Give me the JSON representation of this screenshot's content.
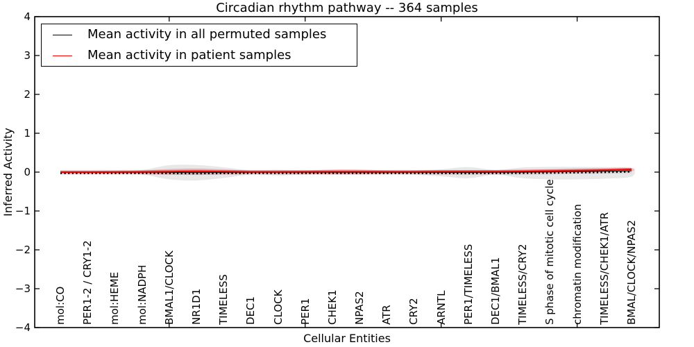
{
  "title": "Circadian rhythm pathway -- 364 samples",
  "axes": {
    "xlabel": "Cellular Entities",
    "ylabel": "Inferred Activity",
    "ytick_labels": [
      "4",
      "3",
      "2",
      "1",
      "0",
      "−1",
      "−2",
      "−3",
      "−4"
    ]
  },
  "legend": {
    "items": [
      {
        "label": "Mean activity in all permuted samples",
        "color": "#000000"
      },
      {
        "label": "Mean activity in patient samples",
        "color": "#ff0000"
      }
    ]
  },
  "colors": {
    "permuted_line": "#000000",
    "patient_line": "#e60000",
    "permuted_band": "rgba(0,0,0,0.09)",
    "permuted_band_core": "rgba(0,0,0,0.08)",
    "patient_band": "rgba(255,0,0,0.20)",
    "patient_band_core": "rgba(255,0,0,0.25)",
    "frame": "#000000"
  },
  "chart_data": {
    "type": "line",
    "title": "Circadian rhythm pathway -- 364 samples",
    "xlabel": "Cellular Entities",
    "ylabel": "Inferred Activity",
    "ylim": [
      -4,
      4
    ],
    "yticks": [
      4,
      3,
      2,
      1,
      0,
      -1,
      -2,
      -3,
      -4
    ],
    "grid": false,
    "legend_position": "upper left",
    "categories": [
      "mol:CO",
      "PER1-2 / CRY1-2",
      "mol:HEME",
      "mol:NADPH",
      "BMAL1/CLOCK",
      "NR1D1",
      "TIMELESS",
      "DEC1",
      "CLOCK",
      "PER1",
      "CHEK1",
      "NPAS2",
      "ATR",
      "CRY2",
      "ARNTL",
      "PER1/TIMELESS",
      "DEC1/BMAL1",
      "TIMELESS/CRY2",
      "S phase of mitotic cell cycle",
      "chromatin modification",
      "TIMELESS/CHEK1/ATR",
      "BMAL/CLOCK/NPAS2"
    ],
    "series": [
      {
        "name": "Mean activity in all permuted samples",
        "color": "#000000",
        "values": [
          -0.005,
          -0.005,
          -0.005,
          -0.005,
          -0.008,
          -0.01,
          -0.008,
          -0.005,
          -0.005,
          -0.005,
          -0.005,
          -0.005,
          -0.005,
          -0.005,
          -0.007,
          -0.009,
          -0.005,
          -0.002,
          0.004,
          0.012,
          0.022,
          0.034
        ]
      },
      {
        "name": "Mean activity in patient samples",
        "color": "#e60000",
        "values": [
          0.0,
          0.0,
          0.002,
          0.005,
          0.013,
          0.021,
          0.014,
          0.007,
          0.007,
          0.009,
          0.011,
          0.011,
          0.009,
          0.009,
          0.012,
          0.013,
          0.013,
          0.02,
          0.028,
          0.039,
          0.052,
          0.071
        ]
      }
    ],
    "bands": [
      {
        "name": "permuted-range",
        "upper": [
          0.036,
          0.036,
          0.04,
          0.055,
          0.178,
          0.182,
          0.125,
          0.045,
          0.057,
          0.036,
          0.036,
          0.036,
          0.036,
          0.045,
          0.071,
          0.128,
          0.053,
          0.119,
          0.134,
          0.134,
          0.128,
          0.098
        ],
        "lower": [
          -0.045,
          -0.045,
          -0.05,
          -0.06,
          -0.187,
          -0.214,
          -0.152,
          -0.062,
          -0.086,
          -0.062,
          -0.053,
          -0.053,
          -0.053,
          -0.062,
          -0.107,
          -0.157,
          -0.068,
          -0.157,
          -0.187,
          -0.187,
          -0.169,
          -0.116
        ]
      },
      {
        "name": "patient-range",
        "upper": [
          0.027,
          0.027,
          0.03,
          0.04,
          0.08,
          0.093,
          0.071,
          0.039,
          0.036,
          0.045,
          0.068,
          0.068,
          0.046,
          0.039,
          0.048,
          0.053,
          0.053,
          0.064,
          0.077,
          0.091,
          0.102,
          0.107
        ],
        "lower": [
          -0.027,
          -0.027,
          -0.03,
          -0.04,
          -0.062,
          -0.068,
          -0.053,
          -0.036,
          -0.036,
          -0.045,
          -0.059,
          -0.059,
          -0.041,
          -0.034,
          -0.036,
          -0.036,
          -0.032,
          -0.025,
          -0.014,
          -0.005,
          0.004,
          0.021
        ]
      }
    ]
  }
}
